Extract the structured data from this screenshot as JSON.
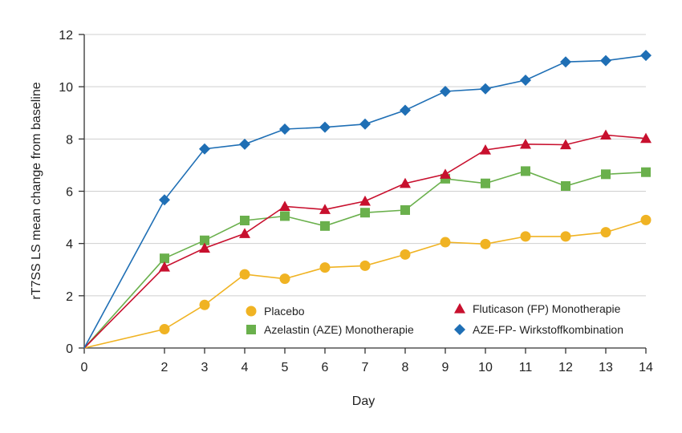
{
  "chart_data": {
    "type": "line",
    "xlabel": "Day",
    "ylabel": "rT7SS LS mean change from baseline",
    "x": [
      0,
      2,
      3,
      4,
      5,
      6,
      7,
      8,
      9,
      10,
      11,
      12,
      13,
      14
    ],
    "xticks": [
      0,
      2,
      3,
      4,
      5,
      6,
      7,
      8,
      9,
      10,
      11,
      12,
      13,
      14
    ],
    "yticks": [
      0,
      2,
      4,
      6,
      8,
      10,
      12
    ],
    "ylim": [
      0,
      12
    ],
    "grid": "horizontal",
    "legend_position": "bottom-right",
    "series": [
      {
        "name": "Placebo",
        "color": "#f0b323",
        "marker": "circle",
        "values": [
          0,
          0.72,
          1.65,
          2.82,
          2.65,
          3.08,
          3.15,
          3.58,
          4.05,
          3.98,
          4.27,
          4.27,
          4.43,
          4.9
        ]
      },
      {
        "name": "Azelastin (AZE) Monotherapie",
        "color": "#6ab04c",
        "marker": "square",
        "values": [
          0,
          3.43,
          4.12,
          4.88,
          5.05,
          4.67,
          5.18,
          5.28,
          6.48,
          6.3,
          6.77,
          6.2,
          6.65,
          6.73
        ]
      },
      {
        "name": "Fluticason (FP) Monotherapie",
        "color": "#c8102e",
        "marker": "triangle",
        "values": [
          0,
          3.1,
          3.82,
          4.38,
          5.42,
          5.3,
          5.62,
          6.3,
          6.65,
          7.58,
          7.8,
          7.78,
          8.15,
          8.02
        ]
      },
      {
        "name": "AZE-FP- Wirkstoffkombination",
        "color": "#1f6fb5",
        "marker": "diamond",
        "values": [
          0,
          5.67,
          7.62,
          7.8,
          8.38,
          8.45,
          8.57,
          9.1,
          9.82,
          9.92,
          10.25,
          10.95,
          11.0,
          11.2
        ]
      }
    ]
  }
}
